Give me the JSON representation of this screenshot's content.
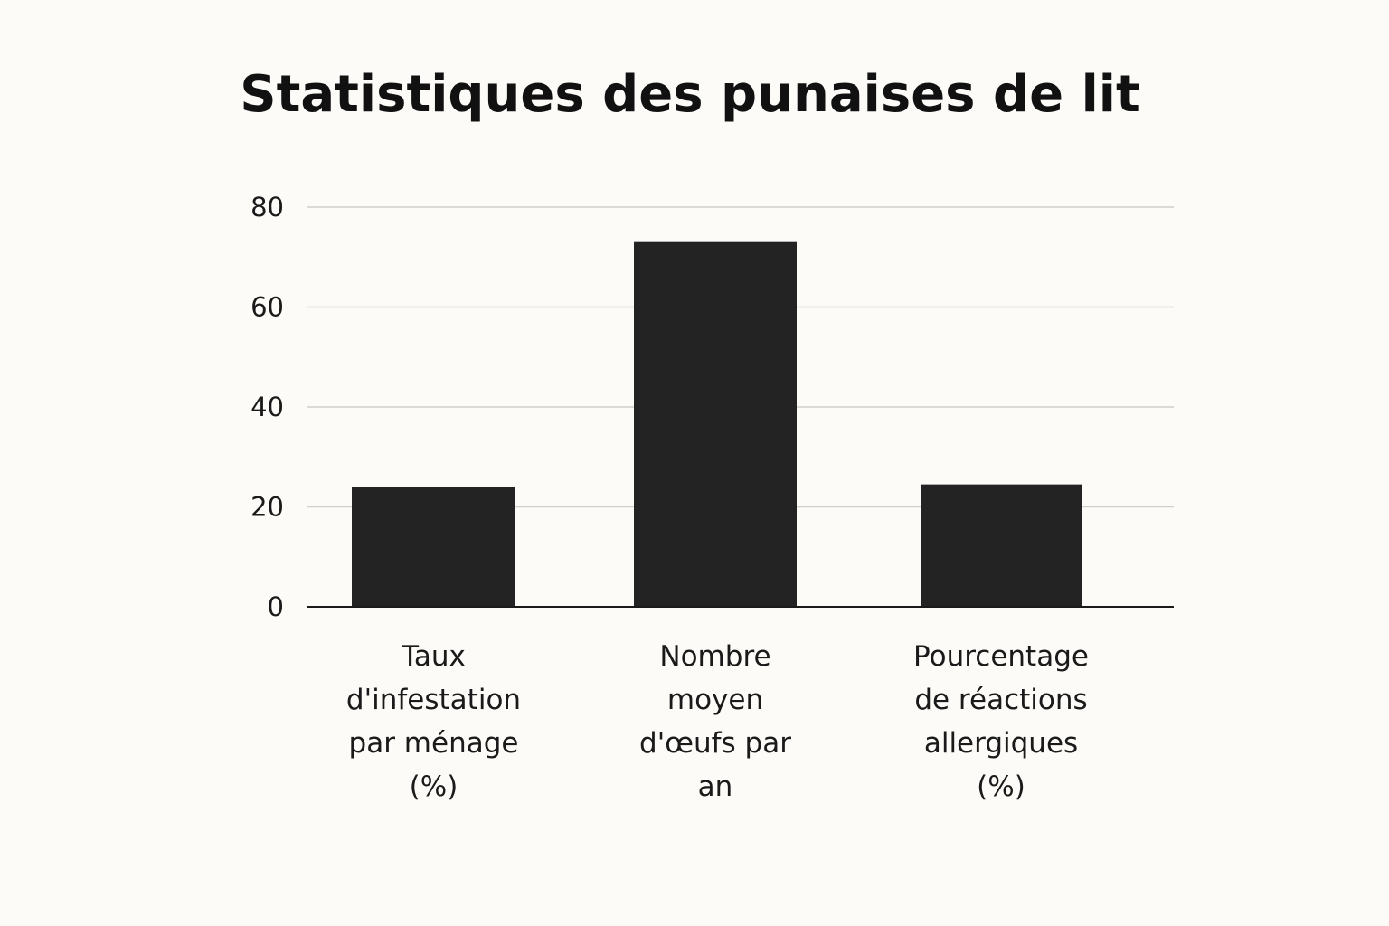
{
  "chart_data": {
    "type": "bar",
    "title": "Statistiques des punaises de lit",
    "xlabel": "",
    "ylabel": "",
    "categories": [
      "Taux\nd'infestation\npar ménage\n(%)",
      "Nombre\nmoyen\nd'œufs par\nan",
      "Pourcentage\nde réactions\nallergiques\n(%)"
    ],
    "values": [
      24,
      73,
      24.5
    ],
    "ylim": [
      0,
      80
    ],
    "yticks": [
      "0",
      "20",
      "40",
      "60",
      "80"
    ],
    "grid": true,
    "legend": "none",
    "bar_color": "#232323"
  }
}
